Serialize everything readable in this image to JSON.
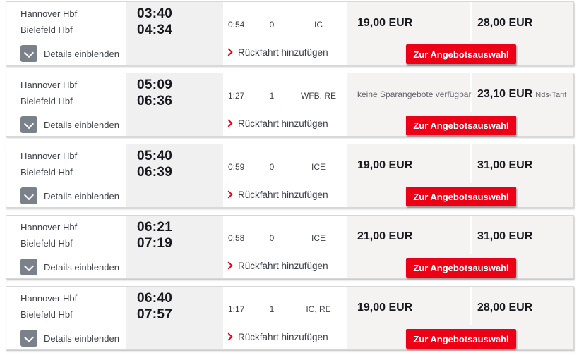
{
  "colors": {
    "db_red": "#ec0016",
    "time_column_bg": "#f0f0f0",
    "price_panel_bg": "#f5f2f2",
    "toggle_gray": "#7b818b",
    "text_dark": "#16181d",
    "text_gray": "#63666e"
  },
  "labels": {
    "details_toggle": "Details einblenden",
    "add_return": "Rückfahrt hinzufügen",
    "offer_button": "Zur Angebotsauswahl"
  },
  "icons": {
    "details_toggle": "chevron-down",
    "add_return": "chevron-right"
  },
  "rows": [
    {
      "from": "Hannover Hbf",
      "to": "Bielefeld Hbf",
      "dep": "03:40",
      "arr": "04:34",
      "duration": "0:54",
      "changes": "0",
      "products": "IC",
      "left_price": "19,00 EUR",
      "left_note": "",
      "right_price": "28,00 EUR",
      "right_note": ""
    },
    {
      "from": "Hannover Hbf",
      "to": "Bielefeld Hbf",
      "dep": "05:09",
      "arr": "06:36",
      "duration": "1:27",
      "changes": "1",
      "products": "WFB, RE",
      "left_price": "",
      "left_note": "keine Sparangebote verfügbar",
      "right_price": "23,10 EUR",
      "right_note": "Nds-Tarif"
    },
    {
      "from": "Hannover Hbf",
      "to": "Bielefeld Hbf",
      "dep": "05:40",
      "arr": "06:39",
      "duration": "0:59",
      "changes": "0",
      "products": "ICE",
      "left_price": "19,00 EUR",
      "left_note": "",
      "right_price": "31,00 EUR",
      "right_note": ""
    },
    {
      "from": "Hannover Hbf",
      "to": "Bielefeld Hbf",
      "dep": "06:21",
      "arr": "07:19",
      "duration": "0:58",
      "changes": "0",
      "products": "ICE",
      "left_price": "21,00 EUR",
      "left_note": "",
      "right_price": "31,00 EUR",
      "right_note": ""
    },
    {
      "from": "Hannover Hbf",
      "to": "Bielefeld Hbf",
      "dep": "06:40",
      "arr": "07:57",
      "duration": "1:17",
      "changes": "1",
      "products": "IC, RE",
      "left_price": "19,00 EUR",
      "left_note": "",
      "right_price": "28,00 EUR",
      "right_note": ""
    }
  ]
}
